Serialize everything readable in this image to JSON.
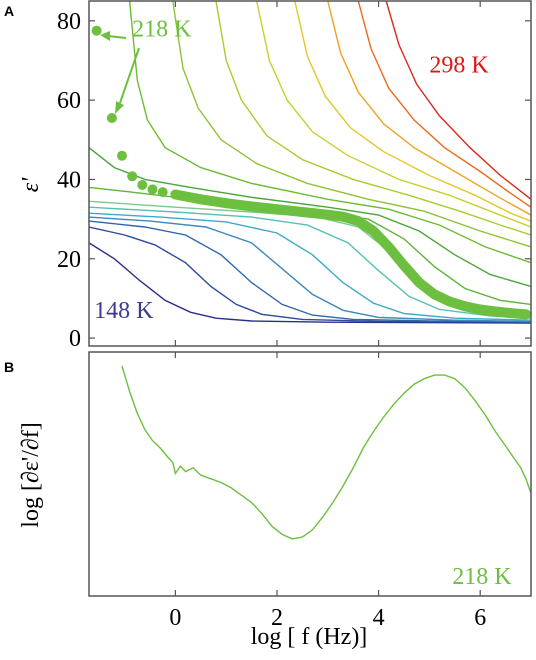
{
  "chart_data": [
    {
      "panel": "A",
      "type": "line",
      "xlabel": "",
      "ylabel": "ε'",
      "xlim": [
        -1.7,
        7.0
      ],
      "ylim": [
        -2,
        85
      ],
      "xticks": [
        0,
        2,
        4,
        6
      ],
      "yticks": [
        0,
        20,
        40,
        60,
        80
      ],
      "annotations": [
        {
          "text": "218 K",
          "color": "#6dbf3f",
          "x": -0.85,
          "y": 76
        },
        {
          "text": "298 K",
          "color": "#e01616",
          "x": 5.0,
          "y": 67
        },
        {
          "text": "148 K",
          "color": "#3a3a92",
          "x": -1.6,
          "y": 5
        }
      ],
      "highlight_series": {
        "name": "218 K",
        "color": "#6dbf3f",
        "points": [
          [
            -1.55,
            77.5
          ],
          [
            -1.25,
            55.5
          ],
          [
            -1.05,
            46
          ],
          [
            -0.85,
            40.8
          ],
          [
            -0.65,
            38.6
          ],
          [
            -0.45,
            37.5
          ],
          [
            -0.25,
            36.8
          ],
          [
            0.0,
            36.2
          ],
          [
            0.5,
            35.0
          ],
          [
            1.0,
            34.0
          ],
          [
            1.5,
            33.2
          ],
          [
            2.0,
            32.5
          ],
          [
            2.5,
            31.8
          ],
          [
            3.0,
            31.1
          ],
          [
            3.3,
            30.6
          ],
          [
            3.6,
            29.5
          ],
          [
            3.9,
            27.0
          ],
          [
            4.2,
            23.0
          ],
          [
            4.5,
            18.3
          ],
          [
            4.8,
            14.0
          ],
          [
            5.1,
            11.0
          ],
          [
            5.4,
            9.2
          ],
          [
            5.7,
            8.0
          ],
          [
            6.0,
            7.2
          ],
          [
            6.3,
            6.7
          ],
          [
            6.6,
            6.3
          ],
          [
            6.9,
            6.0
          ]
        ]
      },
      "series": [
        {
          "color": "#2b2f8a",
          "points": [
            [
              -1.7,
              24
            ],
            [
              -1.2,
              20
            ],
            [
              -0.7,
              14.5
            ],
            [
              -0.2,
              9.5
            ],
            [
              0.3,
              6.5
            ],
            [
              0.8,
              5
            ],
            [
              1.5,
              4.3
            ],
            [
              3,
              4
            ],
            [
              7,
              3.8
            ]
          ]
        },
        {
          "color": "#2c4a9e",
          "points": [
            [
              -1.7,
              28
            ],
            [
              -1,
              26
            ],
            [
              -0.4,
              23.5
            ],
            [
              0.2,
              19
            ],
            [
              0.7,
              13
            ],
            [
              1.2,
              8.5
            ],
            [
              1.7,
              6
            ],
            [
              2.5,
              4.7
            ],
            [
              4,
              4.2
            ],
            [
              7,
              4
            ]
          ]
        },
        {
          "color": "#2e66ae",
          "points": [
            [
              -1.7,
              29.5
            ],
            [
              -0.6,
              28
            ],
            [
              0.2,
              26
            ],
            [
              0.9,
              21
            ],
            [
              1.5,
              14
            ],
            [
              2.1,
              8.5
            ],
            [
              2.7,
              5.8
            ],
            [
              3.5,
              4.7
            ],
            [
              5,
              4.3
            ],
            [
              7,
              4.1
            ]
          ]
        },
        {
          "color": "#3d87c2",
          "points": [
            [
              -1.7,
              30.5
            ],
            [
              -0.5,
              29.5
            ],
            [
              0.6,
              28
            ],
            [
              1.5,
              24
            ],
            [
              2.1,
              17.5
            ],
            [
              2.7,
              11
            ],
            [
              3.3,
              7
            ],
            [
              4,
              5.2
            ],
            [
              5.5,
              4.5
            ],
            [
              7,
              4.2
            ]
          ]
        },
        {
          "color": "#3fa9c9",
          "points": [
            [
              -1.7,
              31.5
            ],
            [
              -0.3,
              30.5
            ],
            [
              1,
              29.3
            ],
            [
              2,
              26.5
            ],
            [
              2.7,
              21
            ],
            [
              3.3,
              14
            ],
            [
              3.9,
              8.8
            ],
            [
              4.5,
              6.2
            ],
            [
              5.5,
              5
            ],
            [
              7,
              4.5
            ]
          ]
        },
        {
          "color": "#56c0b8",
          "points": [
            [
              -1.7,
              33
            ],
            [
              0,
              31.8
            ],
            [
              1.5,
              30.5
            ],
            [
              2.6,
              28.5
            ],
            [
              3.4,
              24
            ],
            [
              4,
              17
            ],
            [
              4.6,
              10.5
            ],
            [
              5.2,
              7.2
            ],
            [
              6.2,
              5.6
            ],
            [
              7,
              5
            ]
          ]
        },
        {
          "color": "#7cc88e",
          "points": [
            [
              -1.7,
              34.5
            ],
            [
              0,
              33
            ],
            [
              1.5,
              31.8
            ],
            [
              2.8,
              30.5
            ],
            [
              3.6,
              28
            ],
            [
              4.3,
              21
            ],
            [
              4.9,
              13.5
            ],
            [
              5.5,
              9
            ],
            [
              6.3,
              6.8
            ],
            [
              7,
              6
            ]
          ]
        },
        {
          "color": "#5db53a",
          "points": [
            [
              -1.7,
              38
            ],
            [
              -1,
              37
            ],
            [
              0,
              35.5
            ],
            [
              1.5,
              33.5
            ],
            [
              3,
              31.5
            ],
            [
              3.8,
              30
            ],
            [
              4.5,
              25
            ],
            [
              5.1,
              18
            ],
            [
              5.7,
              12.5
            ],
            [
              6.4,
              9.5
            ],
            [
              7,
              8.5
            ]
          ]
        },
        {
          "color": "#4aa53a",
          "points": [
            [
              -1.7,
              48
            ],
            [
              -1.2,
              43
            ],
            [
              -0.6,
              40
            ],
            [
              0.3,
              38
            ],
            [
              1.5,
              35.5
            ],
            [
              3,
              33
            ],
            [
              4,
              31
            ],
            [
              4.8,
              27
            ],
            [
              5.5,
              21
            ],
            [
              6.2,
              16
            ],
            [
              7,
              13
            ]
          ]
        },
        {
          "color": "#6fba33",
          "points": [
            [
              -0.9,
              85
            ],
            [
              -0.75,
              65
            ],
            [
              -0.55,
              55
            ],
            [
              -0.2,
              48
            ],
            [
              0.5,
              43
            ],
            [
              1.5,
              39
            ],
            [
              3,
              35
            ],
            [
              4.2,
              32.5
            ],
            [
              5.2,
              28.5
            ],
            [
              6.1,
              23
            ],
            [
              7,
              19
            ]
          ]
        },
        {
          "color": "#8cc433",
          "points": [
            [
              -0.05,
              85
            ],
            [
              0.15,
              68
            ],
            [
              0.45,
              58
            ],
            [
              0.9,
              50
            ],
            [
              1.6,
              44
            ],
            [
              2.6,
              39
            ],
            [
              3.8,
              35
            ],
            [
              4.9,
              32
            ],
            [
              6,
              27
            ],
            [
              7,
              23
            ]
          ]
        },
        {
          "color": "#a8cc2c",
          "points": [
            [
              0.8,
              85
            ],
            [
              1.0,
              70
            ],
            [
              1.3,
              60
            ],
            [
              1.8,
              51
            ],
            [
              2.5,
              45
            ],
            [
              3.5,
              40
            ],
            [
              4.6,
              36
            ],
            [
              5.6,
              32
            ],
            [
              6.4,
              28.5
            ],
            [
              7,
              26
            ]
          ]
        },
        {
          "color": "#c7d02a",
          "points": [
            [
              1.6,
              85
            ],
            [
              1.85,
              70
            ],
            [
              2.2,
              60
            ],
            [
              2.7,
              52
            ],
            [
              3.4,
              46
            ],
            [
              4.4,
              40
            ],
            [
              5.4,
              36
            ],
            [
              6.3,
              31.5
            ],
            [
              7,
              28
            ]
          ]
        },
        {
          "color": "#e6c626",
          "points": [
            [
              2.35,
              85
            ],
            [
              2.6,
              71
            ],
            [
              2.95,
              61
            ],
            [
              3.45,
              53
            ],
            [
              4.1,
              47
            ],
            [
              5,
              41
            ],
            [
              5.9,
              36
            ],
            [
              6.6,
              31.5
            ],
            [
              7,
              29.5
            ]
          ]
        },
        {
          "color": "#f0a222",
          "points": [
            [
              3.0,
              85
            ],
            [
              3.25,
              72
            ],
            [
              3.6,
              62
            ],
            [
              4.1,
              54
            ],
            [
              4.7,
              48
            ],
            [
              5.5,
              42
            ],
            [
              6.3,
              36
            ],
            [
              7,
              31
            ]
          ]
        },
        {
          "color": "#ec6a1f",
          "points": [
            [
              3.6,
              85
            ],
            [
              3.85,
              73
            ],
            [
              4.2,
              63
            ],
            [
              4.7,
              55
            ],
            [
              5.3,
              48
            ],
            [
              6.0,
              42
            ],
            [
              6.6,
              36.5
            ],
            [
              7,
              33
            ]
          ]
        },
        {
          "color": "#d92b1c",
          "points": [
            [
              4.15,
              85
            ],
            [
              4.4,
              74
            ],
            [
              4.75,
              64
            ],
            [
              5.2,
              56
            ],
            [
              5.8,
              48
            ],
            [
              6.4,
              41
            ],
            [
              7,
              35
            ]
          ]
        }
      ]
    },
    {
      "panel": "B",
      "type": "line",
      "xlabel": "log [ f (Hz)]",
      "ylabel": "log [∂ε'/∂f]",
      "xlim": [
        -1.7,
        7.0
      ],
      "ylim": [
        0,
        1
      ],
      "xticks": [
        0,
        2,
        4,
        6
      ],
      "annotations": [
        {
          "text": "218 K",
          "color": "#6dbf3f",
          "x": 5.45,
          "y": 0.06
        }
      ],
      "series": [
        {
          "name": "218 K",
          "color": "#6dbf3f",
          "points": [
            [
              -1.05,
              1.0
            ],
            [
              -0.9,
              0.86
            ],
            [
              -0.75,
              0.74
            ],
            [
              -0.6,
              0.65
            ],
            [
              -0.45,
              0.59
            ],
            [
              -0.3,
              0.55
            ],
            [
              -0.15,
              0.5
            ],
            [
              -0.05,
              0.47
            ],
            [
              0.0,
              0.41
            ],
            [
              0.1,
              0.45
            ],
            [
              0.2,
              0.42
            ],
            [
              0.35,
              0.44
            ],
            [
              0.5,
              0.4
            ],
            [
              0.7,
              0.38
            ],
            [
              0.9,
              0.36
            ],
            [
              1.1,
              0.33
            ],
            [
              1.3,
              0.29
            ],
            [
              1.5,
              0.25
            ],
            [
              1.7,
              0.19
            ],
            [
              1.9,
              0.12
            ],
            [
              2.1,
              0.075
            ],
            [
              2.3,
              0.05
            ],
            [
              2.5,
              0.06
            ],
            [
              2.7,
              0.1
            ],
            [
              2.9,
              0.17
            ],
            [
              3.1,
              0.25
            ],
            [
              3.3,
              0.34
            ],
            [
              3.5,
              0.44
            ],
            [
              3.7,
              0.55
            ],
            [
              3.9,
              0.64
            ],
            [
              4.1,
              0.72
            ],
            [
              4.3,
              0.79
            ],
            [
              4.5,
              0.85
            ],
            [
              4.7,
              0.9
            ],
            [
              4.9,
              0.93
            ],
            [
              5.1,
              0.95
            ],
            [
              5.3,
              0.95
            ],
            [
              5.5,
              0.93
            ],
            [
              5.7,
              0.88
            ],
            [
              5.9,
              0.81
            ],
            [
              6.1,
              0.73
            ],
            [
              6.3,
              0.64
            ],
            [
              6.5,
              0.56
            ],
            [
              6.65,
              0.5
            ],
            [
              6.8,
              0.44
            ],
            [
              6.9,
              0.38
            ],
            [
              7.0,
              0.3
            ]
          ]
        }
      ]
    }
  ]
}
